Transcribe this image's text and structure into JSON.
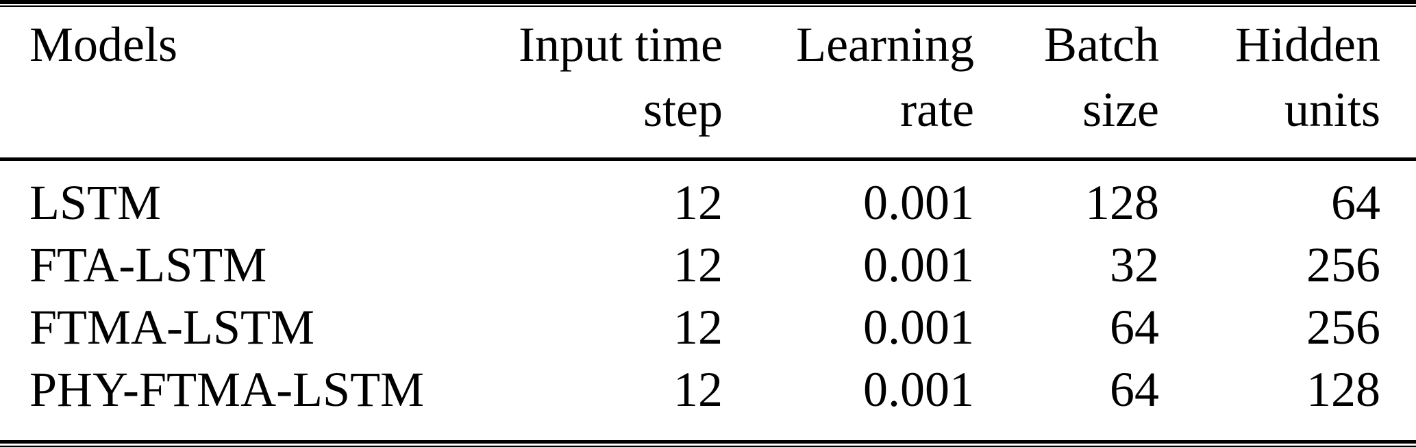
{
  "page": {
    "background_color": "#ffffff",
    "text_color": "#000000",
    "rule_color": "#000000"
  },
  "table": {
    "columns": [
      {
        "id": "models",
        "line1": "Models",
        "line2": "",
        "align": "left"
      },
      {
        "id": "input-time-step",
        "line1": "Input time",
        "line2": "step",
        "align": "right"
      },
      {
        "id": "learning-rate",
        "line1": "Learning",
        "line2": "rate",
        "align": "right"
      },
      {
        "id": "batch-size",
        "line1": "Batch",
        "line2": "size",
        "align": "right"
      },
      {
        "id": "hidden-units",
        "line1": "Hidden",
        "line2": "units",
        "align": "right"
      }
    ],
    "rows": [
      {
        "model": "LSTM",
        "input_time_step": "12",
        "learning_rate": "0.001",
        "batch_size": "128",
        "hidden_units": "64"
      },
      {
        "model": "FTA-LSTM",
        "input_time_step": "12",
        "learning_rate": "0.001",
        "batch_size": "32",
        "hidden_units": "256"
      },
      {
        "model": "FTMA-LSTM",
        "input_time_step": "12",
        "learning_rate": "0.001",
        "batch_size": "64",
        "hidden_units": "256"
      },
      {
        "model": "PHY-FTMA-LSTM",
        "input_time_step": "12",
        "learning_rate": "0.001",
        "batch_size": "64",
        "hidden_units": "128"
      }
    ]
  },
  "chart_data": {
    "type": "table",
    "title": "",
    "columns": [
      "Models",
      "Input time step",
      "Learning rate",
      "Batch size",
      "Hidden units"
    ],
    "rows": [
      [
        "LSTM",
        12,
        0.001,
        128,
        64
      ],
      [
        "FTA-LSTM",
        12,
        0.001,
        32,
        256
      ],
      [
        "FTMA-LSTM",
        12,
        0.001,
        64,
        256
      ],
      [
        "PHY-FTMA-LSTM",
        12,
        0.001,
        64,
        128
      ]
    ]
  }
}
